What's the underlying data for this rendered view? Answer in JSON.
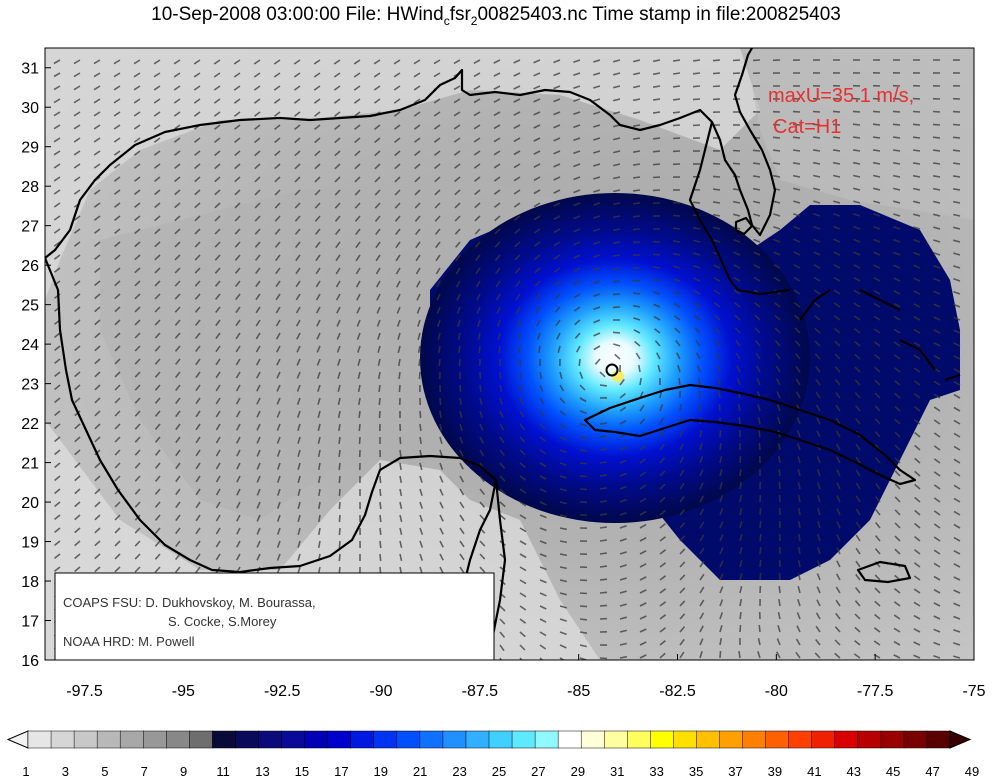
{
  "title": {
    "prefix": "10-Sep-2008 03:00:00 File: HWind",
    "subscript": "c",
    "file_rest": "fsr",
    "subscript2": "2",
    "suffix": "00825403.nc Time stamp in file:200825403"
  },
  "annotation": {
    "max_wind": "maxU=35.1 m/s,",
    "category": "Cat=H1"
  },
  "credits": {
    "line1": "COAPS FSU: D. Dukhovskoy, M. Bourassa,",
    "line2": "S. Cocke, S.Morey",
    "line3": "NOAA HRD:  M. Powell"
  },
  "axes": {
    "lon_ticks": [
      "-97.5",
      "-95",
      "-92.5",
      "-90",
      "-87.5",
      "-85",
      "-82.5",
      "-80",
      "-77.5",
      "-75"
    ],
    "lat_ticks": [
      "16",
      "17",
      "18",
      "19",
      "20",
      "21",
      "22",
      "23",
      "24",
      "25",
      "26",
      "27",
      "28",
      "29",
      "30",
      "31"
    ],
    "lon_range": [
      -98.5,
      -75
    ],
    "lat_range": [
      16,
      31.5
    ]
  },
  "storm": {
    "center_lon": -84.3,
    "center_lat": 23.4
  },
  "colorbar": {
    "labels": [
      "1",
      "3",
      "5",
      "7",
      "9",
      "11",
      "13",
      "15",
      "17",
      "19",
      "21",
      "23",
      "25",
      "27",
      "29",
      "31",
      "33",
      "35",
      "37",
      "39",
      "41",
      "43",
      "45",
      "47",
      "49"
    ],
    "colors": [
      "#e6e6e6",
      "#d6d6d6",
      "#c8c8c8",
      "#b8b8b8",
      "#a8a8a8",
      "#989898",
      "#888888",
      "#6e6e6e",
      "#0a0a38",
      "#0a0a5a",
      "#0a0a7a",
      "#0a0a98",
      "#0000b4",
      "#0000cc",
      "#0018e0",
      "#0034f0",
      "#0050ff",
      "#1070ff",
      "#2090ff",
      "#30b0ff",
      "#40d0ff",
      "#60e8ff",
      "#90f8ff",
      "#ffffff",
      "#ffffd8",
      "#ffffa0",
      "#ffff60",
      "#ffff00",
      "#ffe000",
      "#ffc000",
      "#ffa000",
      "#ff8000",
      "#ff6000",
      "#ff4000",
      "#f02000",
      "#d80000",
      "#b80000",
      "#980000",
      "#780000",
      "#580000"
    ]
  }
}
